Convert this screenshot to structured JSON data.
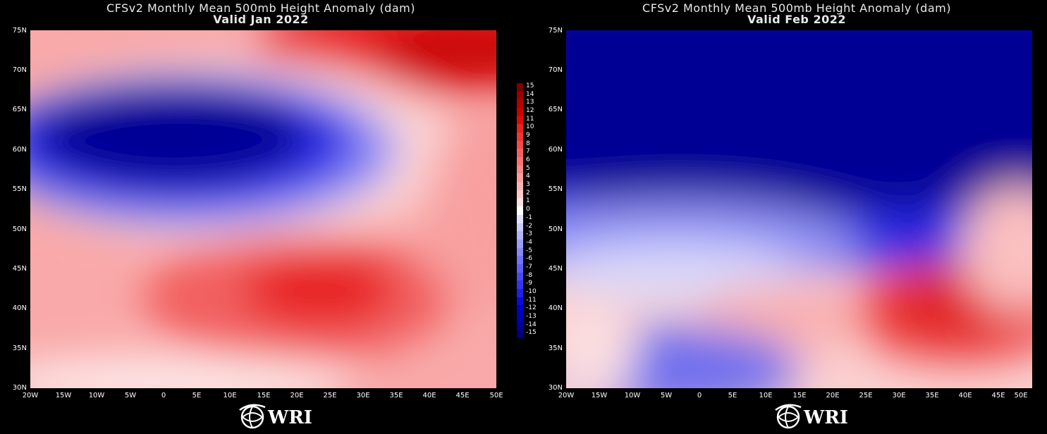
{
  "panels": [
    {
      "title_line1": "CFSv2 Monthly Mean 500mb Height Anomaly (dam)",
      "title_line2": "Valid Jan 2022",
      "field": "jan"
    },
    {
      "title_line1": "CFSv2 Monthly Mean 500mb Height Anomaly (dam)",
      "title_line2": "Valid Feb 2022",
      "field": "feb"
    }
  ],
  "lat_labels": [
    "75N",
    "70N",
    "65N",
    "60N",
    "55N",
    "50N",
    "45N",
    "40N",
    "35N",
    "30N"
  ],
  "lon_labels": [
    "20W",
    "15W",
    "10W",
    "5W",
    "0",
    "5E",
    "10E",
    "15E",
    "20E",
    "25E",
    "30E",
    "35E",
    "40E",
    "45E",
    "50E"
  ],
  "colorbar": {
    "labels": [
      "15",
      "14",
      "13",
      "12",
      "11",
      "10",
      "9",
      "8",
      "7",
      "6",
      "5",
      "4",
      "3",
      "2",
      "1",
      "0",
      "-1",
      "-2",
      "-3",
      "-4",
      "-5",
      "-6",
      "-7",
      "-8",
      "-9",
      "-10",
      "-11",
      "-12",
      "-13",
      "-14",
      "-15"
    ],
    "colors_pos": [
      "#7a0000",
      "#9a0000",
      "#b40000",
      "#c80000",
      "#dc0a0a",
      "#e82020",
      "#f03535",
      "#f44a4a",
      "#f65f5f",
      "#f77373",
      "#f88888",
      "#fa9d9d",
      "#fbb3b3",
      "#fdcaca",
      "#fee0e0",
      "#ffffff"
    ],
    "colors_neg": [
      "#e0e0fe",
      "#cacafd",
      "#b3b3fb",
      "#9d9dfa",
      "#8888f8",
      "#7373f7",
      "#5f5ff6",
      "#4a4af4",
      "#3535f0",
      "#2020e8",
      "#0a0adc",
      "#0000c8",
      "#0000b4",
      "#00009a",
      "#00007a"
    ]
  },
  "logo": {
    "text": "WRI",
    "icon": "globe-swirl-icon"
  }
}
